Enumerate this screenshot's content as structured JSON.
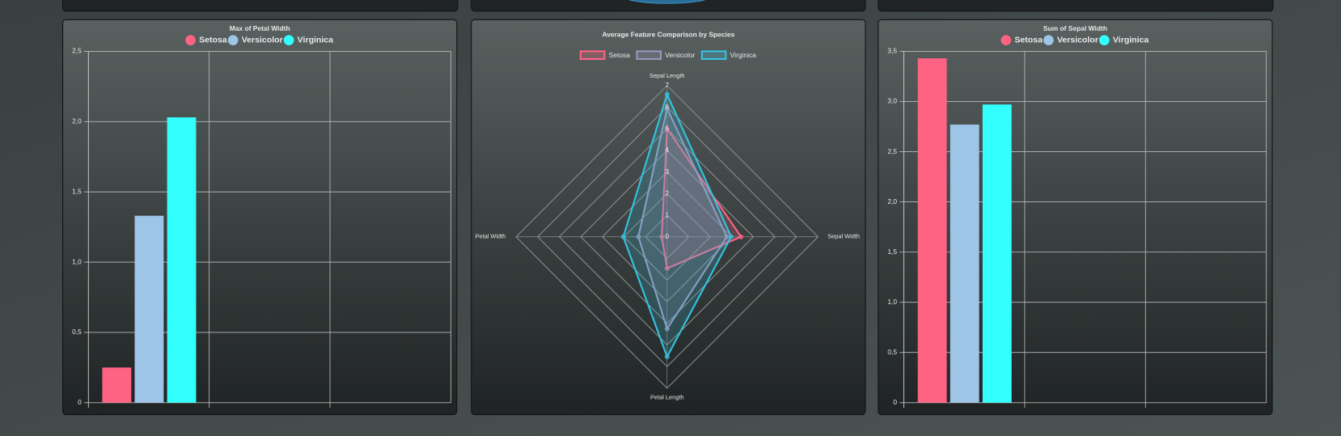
{
  "chart_data": [
    {
      "type": "bar",
      "title": "Max of Petal Width",
      "categories": [
        null
      ],
      "series": [
        {
          "name": "Setosa",
          "color": "#ff6384",
          "values": [
            0.25
          ]
        },
        {
          "name": "Versicolor",
          "color": "#9ec5e8",
          "values": [
            1.33
          ]
        },
        {
          "name": "Virginica",
          "color": "#33ffff",
          "values": [
            2.03
          ]
        }
      ],
      "ylim": [
        0,
        2.5
      ],
      "yticks": [
        0,
        {
          "value": 0.5,
          "label": "0,5"
        },
        {
          "value": 1,
          "label": "1,0"
        },
        {
          "value": 1.5,
          "label": "1,5"
        },
        {
          "value": 2,
          "label": "2,0"
        },
        {
          "value": 2.5,
          "label": "2,5"
        }
      ],
      "grid": true
    },
    {
      "type": "radar",
      "title": "Average Feature Comparison by Species",
      "categories": [
        "Sepal Length",
        "Sepal Width",
        "Petal Length",
        "Petal Width"
      ],
      "series": [
        {
          "name": "Setosa",
          "color": "#ff6384",
          "values": [
            5.01,
            3.43,
            1.46,
            0.25
          ]
        },
        {
          "name": "Versicolor",
          "color": "#9a96bb",
          "values": [
            5.94,
            2.77,
            4.26,
            1.33
          ]
        },
        {
          "name": "Virginica",
          "color": "#36c2e0",
          "values": [
            6.59,
            2.97,
            5.55,
            2.03
          ]
        }
      ],
      "ylim": [
        0,
        7
      ],
      "yticks": [
        0,
        1,
        2,
        3,
        4,
        5,
        6,
        7
      ],
      "grid": true
    },
    {
      "type": "bar",
      "title": "Sum of Sepal Width",
      "categories": [
        null
      ],
      "series": [
        {
          "name": "Setosa",
          "color": "#ff6384",
          "values": [
            3.43
          ]
        },
        {
          "name": "Versicolor",
          "color": "#9ec5e8",
          "values": [
            2.77
          ]
        },
        {
          "name": "Virginica",
          "color": "#33ffff",
          "values": [
            2.97
          ]
        }
      ],
      "ylim": [
        0,
        3.5
      ],
      "yticks": [
        0,
        {
          "value": 0.5,
          "label": "0,5"
        },
        {
          "value": 1,
          "label": "1,0"
        },
        {
          "value": 1.5,
          "label": "1,5"
        },
        {
          "value": 2,
          "label": "2,0"
        },
        {
          "value": 2.5,
          "label": "2,5"
        },
        {
          "value": 3,
          "label": "3,0"
        },
        {
          "value": 3.5,
          "label": "3,5"
        }
      ],
      "grid": true
    }
  ]
}
